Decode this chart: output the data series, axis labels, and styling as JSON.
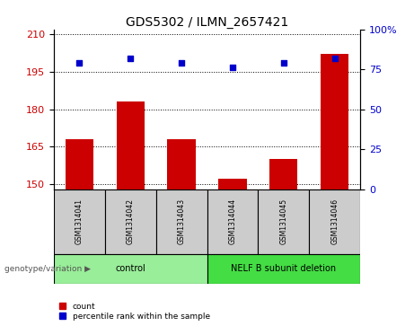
{
  "title": "GDS5302 / ILMN_2657421",
  "samples": [
    "GSM1314041",
    "GSM1314042",
    "GSM1314043",
    "GSM1314044",
    "GSM1314045",
    "GSM1314046"
  ],
  "counts": [
    168,
    183,
    168,
    152,
    160,
    202
  ],
  "percentiles": [
    79,
    82,
    79,
    76,
    79,
    82
  ],
  "ylim_left": [
    148,
    212
  ],
  "yticks_left": [
    150,
    165,
    180,
    195,
    210
  ],
  "ylim_right": [
    0,
    100
  ],
  "yticks_right": [
    0,
    25,
    50,
    75,
    100
  ],
  "bar_color": "#cc0000",
  "dot_color": "#0000cc",
  "bar_width": 0.55,
  "groups": [
    {
      "label": "control",
      "indices": [
        0,
        1,
        2
      ],
      "color": "#99ee99"
    },
    {
      "label": "NELF B subunit deletion",
      "indices": [
        3,
        4,
        5
      ],
      "color": "#44dd44"
    }
  ],
  "group_label_prefix": "genotype/variation",
  "legend_count_label": "count",
  "legend_percentile_label": "percentile rank within the sample",
  "grid_color": "#000000",
  "plot_bg_color": "#ffffff",
  "sample_box_color": "#cccccc",
  "title_fontsize": 10,
  "axis_label_color_left": "#cc0000",
  "axis_label_color_right": "#0000cc"
}
